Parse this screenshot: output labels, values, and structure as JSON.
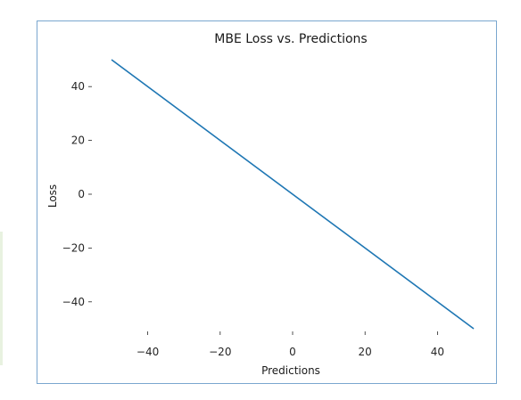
{
  "chart_data": {
    "type": "line",
    "title": "MBE Loss vs. Predictions",
    "xlabel": "Predictions",
    "ylabel": "Loss",
    "xlim": [
      -50,
      50
    ],
    "ylim": [
      -50,
      50
    ],
    "xticks": [
      -40,
      -20,
      0,
      20,
      40
    ],
    "yticks": [
      40,
      20,
      0,
      -20,
      -40
    ],
    "xtick_labels": [
      "−40",
      "−20",
      "0",
      "20",
      "40"
    ],
    "ytick_labels": [
      "40",
      "20",
      "0",
      "−20",
      "−40"
    ],
    "grid": false,
    "series": [
      {
        "color": "#1f77b4",
        "x": [
          -50,
          50
        ],
        "y": [
          50,
          -50
        ]
      }
    ]
  }
}
